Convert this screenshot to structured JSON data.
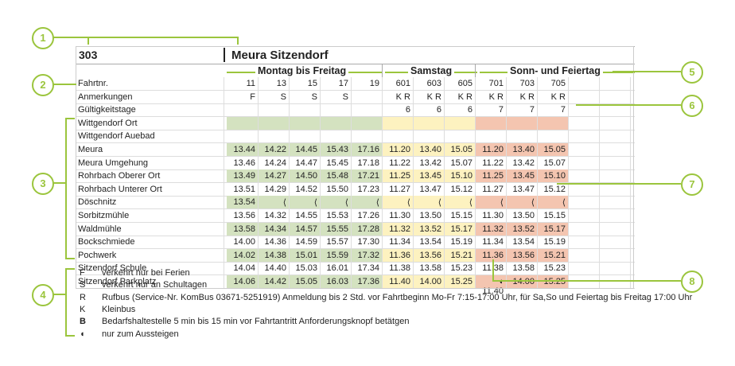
{
  "route": "303",
  "destination": "Meura Sitzendorf",
  "groups": {
    "weekday": "Montag bis Freitag",
    "saturday": "Samstag",
    "sunday": "Sonn- und Feiertag"
  },
  "header_rows": [
    {
      "label": "Fahrtnr.",
      "cells": [
        "11",
        "13",
        "15",
        "17",
        "19",
        "601",
        "603",
        "605",
        "701",
        "703",
        "705",
        "",
        ""
      ]
    },
    {
      "label": "Anmerkungen",
      "cells": [
        "F",
        "S",
        "S",
        "S",
        "",
        "K R",
        "K R",
        "K R",
        "K R",
        "K R",
        "K R",
        "",
        ""
      ]
    },
    {
      "label": "Gültigkeitstage",
      "cells": [
        "",
        "",
        "",
        "",
        "",
        "6",
        "6",
        "6",
        "7",
        "7",
        "7",
        "",
        ""
      ]
    }
  ],
  "stop_rows": [
    {
      "label": "Wittgendorf Ort",
      "cells": [
        "",
        "",
        "",
        "",
        "",
        "",
        "",
        "",
        "",
        "",
        "",
        "",
        ""
      ]
    },
    {
      "label": "Wittgendorf Auebad",
      "cells": [
        "",
        "",
        "",
        "",
        "",
        "",
        "",
        "",
        "",
        "",
        "",
        "",
        ""
      ]
    },
    {
      "label": "Meura",
      "cells": [
        "13.44",
        "14.22",
        "14.45",
        "15.43",
        "17.16",
        "11.20",
        "13.40",
        "15.05",
        "11.20",
        "13.40",
        "15.05",
        "",
        ""
      ]
    },
    {
      "label": "Meura Umgehung",
      "cells": [
        "13.46",
        "14.24",
        "14.47",
        "15.45",
        "17.18",
        "11.22",
        "13.42",
        "15.07",
        "11.22",
        "13.42",
        "15.07",
        "",
        ""
      ]
    },
    {
      "label": "Rohrbach Oberer Ort",
      "cells": [
        "13.49",
        "14.27",
        "14.50",
        "15.48",
        "17.21",
        "11.25",
        "13.45",
        "15.10",
        "11.25",
        "13.45",
        "15.10",
        "",
        ""
      ]
    },
    {
      "label": "Rohrbach Unterer Ort",
      "cells": [
        "13.51",
        "14.29",
        "14.52",
        "15.50",
        "17.23",
        "11.27",
        "13.47",
        "15.12",
        "11.27",
        "13.47",
        "15.12",
        "",
        ""
      ]
    },
    {
      "label": "Döschnitz",
      "cells": [
        "13.54",
        "⟨",
        "⟨",
        "⟨",
        "⟨",
        "⟨",
        "⟨",
        "⟨",
        "⟨",
        "⟨",
        "⟨",
        "",
        ""
      ]
    },
    {
      "label": "Sorbitzmühle",
      "cells": [
        "13.56",
        "14.32",
        "14.55",
        "15.53",
        "17.26",
        "11.30",
        "13.50",
        "15.15",
        "11.30",
        "13.50",
        "15.15",
        "",
        ""
      ]
    },
    {
      "label": "Waldmühle",
      "cells": [
        "13.58",
        "14.34",
        "14.57",
        "15.55",
        "17.28",
        "11.32",
        "13.52",
        "15.17",
        "11.32",
        "13.52",
        "15.17",
        "",
        ""
      ]
    },
    {
      "label": "Bockschmiede",
      "cells": [
        "14.00",
        "14.36",
        "14.59",
        "15.57",
        "17.30",
        "11.34",
        "13.54",
        "15.19",
        "11.34",
        "13.54",
        "15.19",
        "",
        ""
      ]
    },
    {
      "label": "Pochwerk",
      "cells": [
        "14.02",
        "14.38",
        "15.01",
        "15.59",
        "17.32",
        "11.36",
        "13.56",
        "15.21",
        "11.36",
        "13.56",
        "15.21",
        "",
        ""
      ]
    },
    {
      "label": "Sitzendorf Schule",
      "cells": [
        "14.04",
        "14.40",
        "15.03",
        "16.01",
        "17.34",
        "11.38",
        "13.58",
        "15.23",
        "11.38",
        "13.58",
        "15.23",
        "",
        ""
      ]
    },
    {
      "label": "Sitzendorf Parkplatz",
      "cells": [
        "14.06",
        "14.42",
        "15.05",
        "16.03",
        "17.36",
        "11.40",
        "14.00",
        "15.25",
        "◖ 11.40",
        "14.00",
        "15.25",
        "",
        ""
      ]
    }
  ],
  "legend": [
    {
      "key": "F",
      "text": "verkehrt nur bei Ferien"
    },
    {
      "key": "S",
      "text": "verkehrt nur an Schultagen"
    },
    {
      "key": "R",
      "text": "Rufbus (Service-Nr. KomBus 03671-5251919) Anmeldung bis 2 Std. vor Fahrtbeginn Mo-Fr 7:15-17:00 Uhr, für Sa,So und Feiertag bis Freitag 17:00 Uhr"
    },
    {
      "key": "K",
      "text": "Kleinbus"
    },
    {
      "key": "B",
      "text": "Bedarfshaltestelle 5 min bis 15 min vor Fahrtantritt Anforderungsknopf betätgen"
    },
    {
      "key": "◖",
      "text": "nur zum Aussteigen"
    }
  ],
  "callouts": [
    "1",
    "2",
    "3",
    "4",
    "5",
    "6",
    "7",
    "8"
  ],
  "colors": {
    "weekday": "#d4e2c0",
    "saturday": "#fdf2c0",
    "sunday": "#f4c5b0",
    "accent": "#9bc53d"
  }
}
